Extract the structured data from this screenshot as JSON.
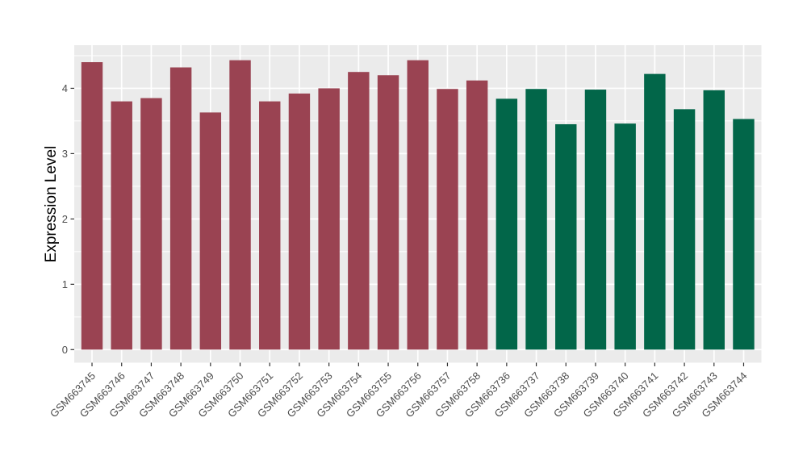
{
  "chart_data": {
    "type": "bar",
    "title": "",
    "xlabel": "",
    "ylabel": "Expression Level",
    "ylim": [
      -0.2,
      4.66
    ],
    "yticks": [
      0,
      1,
      2,
      3,
      4
    ],
    "grid": true,
    "legend": false,
    "panel_bg": "#EBEBEB",
    "grid_color": "#FFFFFF",
    "axis_text_color": "#4D4D4D",
    "tick_color": "#333333",
    "group_colors": {
      "groupA": "#9A4352",
      "groupB": "#026649"
    },
    "categories": [
      "GSM663745",
      "GSM663746",
      "GSM663747",
      "GSM663748",
      "GSM663749",
      "GSM663750",
      "GSM663751",
      "GSM663752",
      "GSM663753",
      "GSM663754",
      "GSM663755",
      "GSM663756",
      "GSM663757",
      "GSM663758",
      "GSM663736",
      "GSM663737",
      "GSM663738",
      "GSM663739",
      "GSM663740",
      "GSM663741",
      "GSM663742",
      "GSM663743",
      "GSM663744"
    ],
    "values": [
      4.4,
      3.8,
      3.85,
      4.32,
      3.63,
      4.43,
      3.8,
      3.92,
      4.0,
      4.25,
      4.2,
      4.43,
      3.99,
      4.12,
      3.84,
      3.99,
      3.45,
      3.98,
      3.46,
      4.22,
      3.68,
      3.97,
      3.53
    ],
    "bar_groups": [
      "groupA",
      "groupA",
      "groupA",
      "groupA",
      "groupA",
      "groupA",
      "groupA",
      "groupA",
      "groupA",
      "groupA",
      "groupA",
      "groupA",
      "groupA",
      "groupA",
      "groupB",
      "groupB",
      "groupB",
      "groupB",
      "groupB",
      "groupB",
      "groupB",
      "groupB",
      "groupB"
    ]
  }
}
